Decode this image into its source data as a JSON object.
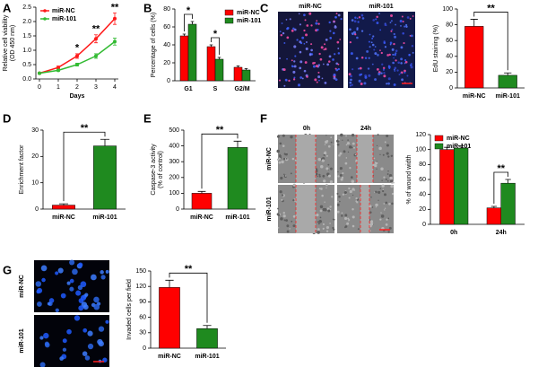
{
  "panels": [
    "A",
    "B",
    "C",
    "D",
    "E",
    "F",
    "G"
  ],
  "images": {
    "C": {
      "columns": [
        "miR-NC",
        "miR-101"
      ]
    },
    "F": {
      "columns": [
        "0h",
        "24h"
      ],
      "rows": [
        "miR-NC",
        "miR-101"
      ]
    },
    "G": {
      "rows": [
        "miR-NC",
        "miR-101"
      ]
    }
  },
  "chart_data": [
    {
      "type": "line",
      "x_label": "Days",
      "y_label": [
        "Relative cell viability",
        "(OD 450 nm)"
      ],
      "x": [
        0,
        1,
        2,
        3,
        4
      ],
      "xlim": [
        0,
        4
      ],
      "xticks": [
        0,
        1,
        2,
        3,
        4
      ],
      "ylim": [
        0,
        2.5
      ],
      "yticks": [
        {
          "value": 0,
          "label": "0.0"
        },
        0.5,
        {
          "value": 1,
          "label": "1.0"
        },
        1.5,
        {
          "value": 2,
          "label": "2.0"
        },
        2.5
      ],
      "legend": "upper left",
      "series": [
        {
          "name": "miR-NC",
          "color": "#ff1a1a",
          "values": [
            0.2,
            0.4,
            0.8,
            1.4,
            2.1
          ],
          "errors": [
            0.03,
            0.05,
            0.08,
            0.14,
            0.2
          ]
        },
        {
          "name": "miR-101",
          "color": "#33bb33",
          "values": [
            0.2,
            0.3,
            0.5,
            0.8,
            1.3
          ],
          "errors": [
            0.02,
            0.03,
            0.05,
            0.08,
            0.12
          ]
        }
      ],
      "annotations": [
        {
          "x": 2,
          "text": "*"
        },
        {
          "x": 3,
          "text": "**"
        },
        {
          "x": 4,
          "text": "**"
        }
      ]
    },
    {
      "type": "bar",
      "y_label": "Percentage of cells (%)",
      "categories": [
        "G1",
        "S",
        "G2/M"
      ],
      "ylim": [
        0,
        80
      ],
      "yticks": [
        0,
        20,
        40,
        60,
        80
      ],
      "legend": "upper right",
      "series": [
        {
          "name": "miR-NC",
          "color": "#ff0000",
          "values": [
            50,
            38,
            15
          ],
          "errors": [
            2,
            2,
            1.5
          ]
        },
        {
          "name": "miR-101",
          "color": "#1f8a1f",
          "values": [
            63,
            24,
            12
          ],
          "errors": [
            3,
            2,
            1.5
          ]
        }
      ],
      "annotations": [
        {
          "at": 0,
          "text": "*"
        },
        {
          "at": 1,
          "text": "*"
        }
      ]
    },
    {
      "type": "bar",
      "y_label": "EdU staining (%)",
      "categories": [
        "miR-NC",
        "miR-101"
      ],
      "ylim": [
        0,
        100
      ],
      "yticks": [
        0,
        20,
        40,
        60,
        80,
        100
      ],
      "values": [
        78,
        16
      ],
      "errors": [
        9,
        3
      ],
      "colors": [
        "#ff0000",
        "#1f8a1f"
      ],
      "annotations": [
        {
          "text": "**"
        }
      ]
    },
    {
      "type": "bar",
      "y_label": "Enrichment factor",
      "categories": [
        "miR-NC",
        "miR-101"
      ],
      "ylim": [
        0,
        30
      ],
      "yticks": [
        0,
        10,
        20,
        30
      ],
      "values": [
        1.5,
        24
      ],
      "errors": [
        0.5,
        2.5
      ],
      "colors": [
        "#ff0000",
        "#1f8a1f"
      ],
      "annotations": [
        {
          "text": "**"
        }
      ]
    },
    {
      "type": "bar",
      "y_label": [
        "Caspase-3 activity",
        "(% of control)"
      ],
      "categories": [
        "miR-NC",
        "miR-101"
      ],
      "ylim": [
        0,
        500
      ],
      "yticks": [
        0,
        100,
        200,
        300,
        400,
        500
      ],
      "values": [
        100,
        390
      ],
      "errors": [
        12,
        40
      ],
      "colors": [
        "#ff0000",
        "#1f8a1f"
      ],
      "annotations": [
        {
          "text": "**"
        }
      ]
    },
    {
      "type": "bar",
      "y_label": "% of wound width",
      "categories": [
        "0h",
        "24h"
      ],
      "ylim": [
        0,
        120
      ],
      "yticks": [
        0,
        20,
        40,
        60,
        80,
        100,
        120
      ],
      "legend": "upper left",
      "series": [
        {
          "name": "miR-NC",
          "color": "#ff0000",
          "values": [
            100,
            22
          ],
          "errors": [
            3,
            2
          ]
        },
        {
          "name": "miR-101",
          "color": "#1f8a1f",
          "values": [
            102,
            55
          ],
          "errors": [
            3,
            5
          ]
        }
      ],
      "annotations": [
        {
          "at": 1,
          "text": "**"
        }
      ]
    },
    {
      "type": "bar",
      "y_label": "Invaded cells per field",
      "categories": [
        "miR-NC",
        "miR-101"
      ],
      "ylim": [
        0,
        150
      ],
      "yticks": [
        0,
        30,
        60,
        90,
        120,
        150
      ],
      "values": [
        118,
        38
      ],
      "errors": [
        14,
        6
      ],
      "colors": [
        "#ff0000",
        "#1f8a1f"
      ],
      "annotations": [
        {
          "text": "**"
        }
      ]
    }
  ]
}
